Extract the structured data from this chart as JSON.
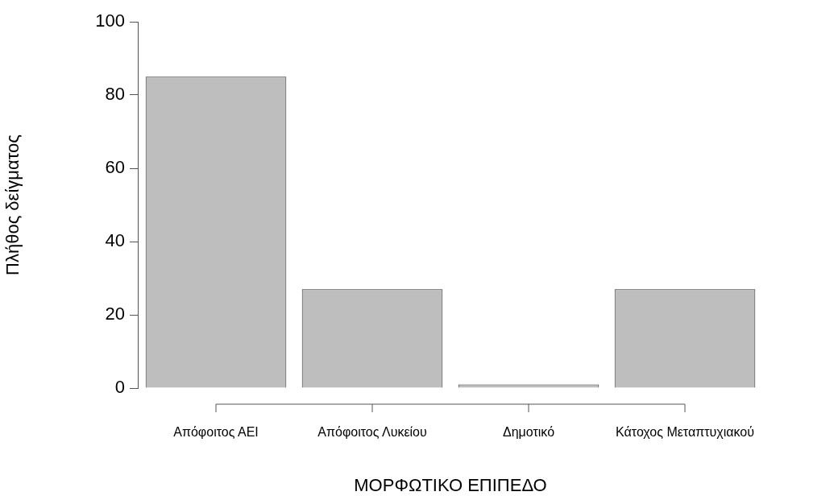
{
  "chart_data": {
    "type": "bar",
    "xlabel": "ΜΟΡΦΩΤΙΚΟ ΕΠΙΠΕΔΟ",
    "ylabel": "Πλήθος δείγματος",
    "categories": [
      "Απόφοιτος ΑΕΙ",
      "Απόφοιτος Λυκείου",
      "Δημοτικό",
      "Κάτοχος Μεταπτυχιακού"
    ],
    "values": [
      85,
      27,
      1,
      27
    ],
    "color": "#bebebe",
    "ylim": [
      0,
      100
    ],
    "yticks": [
      0,
      20,
      40,
      60,
      80,
      100
    ],
    "grid": false,
    "legend": false
  }
}
